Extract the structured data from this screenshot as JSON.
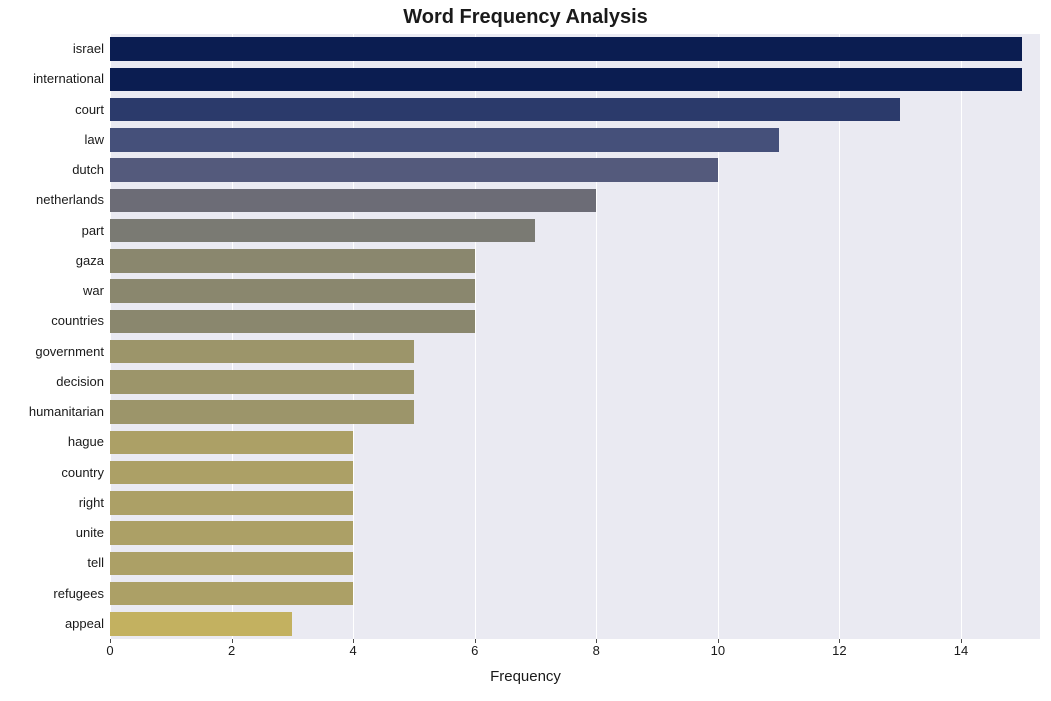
{
  "chart": {
    "type": "bar-horizontal",
    "title": "Word Frequency Analysis",
    "title_fontsize": 20,
    "title_fontweight": "bold",
    "xlabel": "Frequency",
    "xlabel_fontsize": 15,
    "background_color": "#ffffff",
    "plot_bg_color": "#eaeaf2",
    "grid_color": "#ffffff",
    "tick_fontsize": 13,
    "xlim_min": 0,
    "xlim_max": 15.3,
    "xtick_step": 2,
    "xticks": [
      0,
      2,
      4,
      6,
      8,
      10,
      12,
      14
    ],
    "bar_relative_height": 0.78,
    "words": [
      {
        "label": "israel",
        "value": 15,
        "color": "#0b1d51"
      },
      {
        "label": "international",
        "value": 15,
        "color": "#0b1d51"
      },
      {
        "label": "court",
        "value": 13,
        "color": "#2b3a6b"
      },
      {
        "label": "law",
        "value": 11,
        "color": "#45507a"
      },
      {
        "label": "dutch",
        "value": 10,
        "color": "#545a7c"
      },
      {
        "label": "netherlands",
        "value": 8,
        "color": "#6c6c76"
      },
      {
        "label": "part",
        "value": 7,
        "color": "#7a7a73"
      },
      {
        "label": "gaza",
        "value": 6,
        "color": "#8a876e"
      },
      {
        "label": "war",
        "value": 6,
        "color": "#8a876e"
      },
      {
        "label": "countries",
        "value": 6,
        "color": "#8a876e"
      },
      {
        "label": "government",
        "value": 5,
        "color": "#9c956a"
      },
      {
        "label": "decision",
        "value": 5,
        "color": "#9c956a"
      },
      {
        "label": "humanitarian",
        "value": 5,
        "color": "#9c956a"
      },
      {
        "label": "hague",
        "value": 4,
        "color": "#aca066"
      },
      {
        "label": "country",
        "value": 4,
        "color": "#aca066"
      },
      {
        "label": "right",
        "value": 4,
        "color": "#aca066"
      },
      {
        "label": "unite",
        "value": 4,
        "color": "#aca066"
      },
      {
        "label": "tell",
        "value": 4,
        "color": "#aca066"
      },
      {
        "label": "refugees",
        "value": 4,
        "color": "#aca066"
      },
      {
        "label": "appeal",
        "value": 3,
        "color": "#c3b160"
      }
    ]
  }
}
